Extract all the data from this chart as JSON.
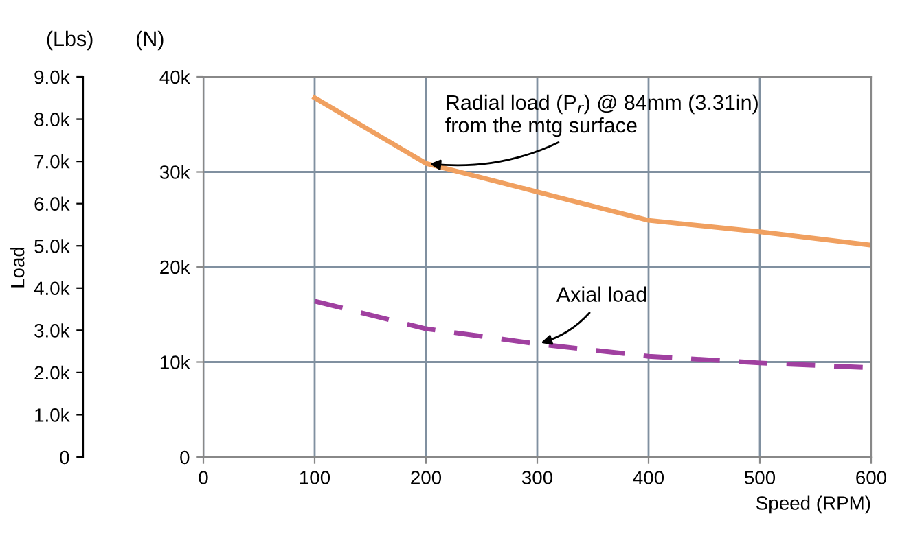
{
  "chart_data": {
    "type": "line",
    "xlabel": "Speed (RPM)",
    "ylabel": "(N)",
    "y2label": "(Lbs)",
    "annotations": [
      {
        "text": "Radial load (P$_{r}$) @ 84mm (3.31in)\nfrom the mtg surface",
        "x": 200,
        "y": 30900
      },
      {
        "text": "Axial load",
        "x": 300,
        "y": 11900
      },
      "Load"
    ],
    "x": [
      100,
      200,
      300,
      400,
      500,
      600
    ],
    "series": [
      {
        "color": "#f0a060",
        "line_style": "solid",
        "values": [
          37800,
          30900,
          27900,
          24900,
          23700,
          22300
        ]
      },
      {
        "color": "#a040a0",
        "line_style": "dashed",
        "values": [
          16400,
          13500,
          11900,
          10600,
          9900,
          9400
        ]
      }
    ],
    "xlim": [
      0,
      600
    ],
    "xticks": [
      0,
      100,
      200,
      300,
      400,
      500,
      600
    ],
    "ylim": [
      0,
      40000
    ],
    "yticks": [
      {
        "value": 0,
        "label": "0"
      },
      {
        "value": 10000,
        "label": "10k"
      },
      {
        "value": 20000,
        "label": "20k"
      },
      {
        "value": 30000,
        "label": "30k"
      },
      {
        "value": 40000,
        "label": "40k"
      }
    ],
    "y2lim": [
      0,
      9000
    ],
    "y2ticks": [
      {
        "value": 0,
        "label": "0"
      },
      {
        "value": 1000,
        "label": "1.0k"
      },
      {
        "value": 2000,
        "label": "2.0k"
      },
      {
        "value": 3000,
        "label": "3.0k"
      },
      {
        "value": 4000,
        "label": "4.0k"
      },
      {
        "value": 5000,
        "label": "5.0k"
      },
      {
        "value": 6000,
        "label": "6.0k"
      },
      {
        "value": 7000,
        "label": "7.0k"
      },
      {
        "value": 8000,
        "label": "8.0k"
      },
      {
        "value": 9000,
        "label": "9.0k"
      }
    ],
    "grid": true,
    "marker": "none"
  }
}
